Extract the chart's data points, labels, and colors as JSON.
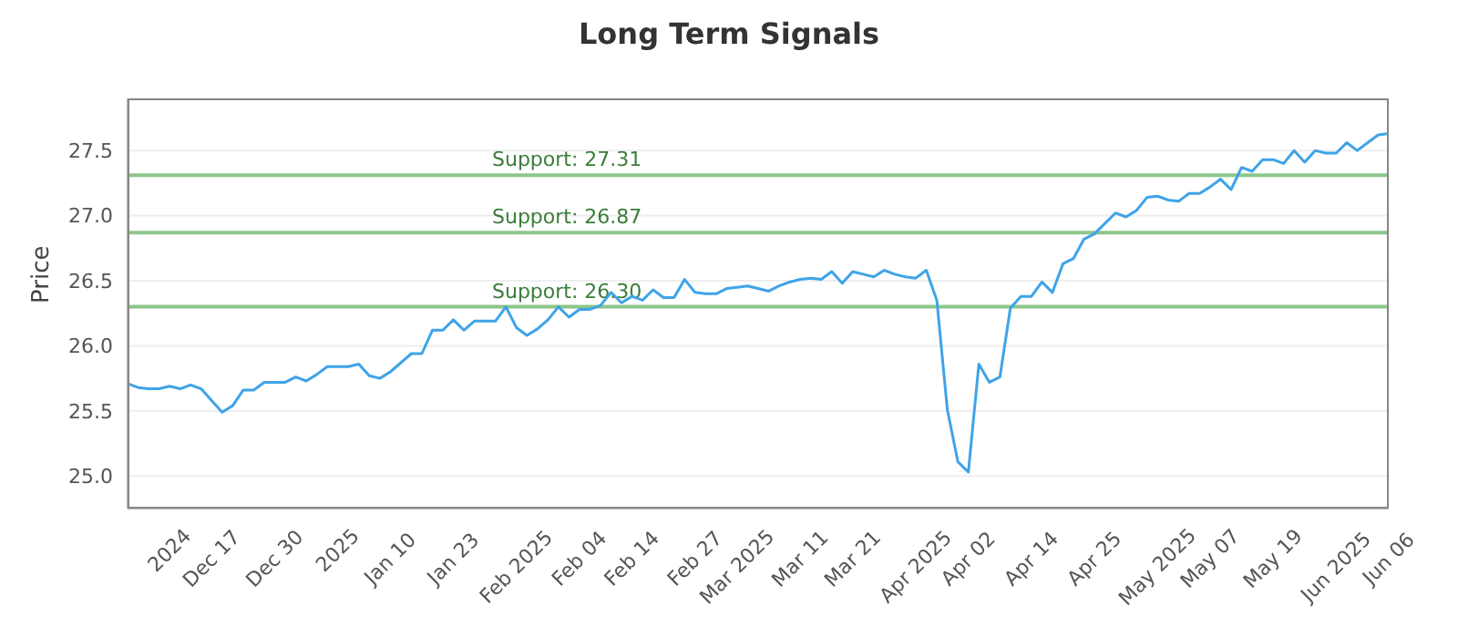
{
  "chart_data": {
    "type": "line",
    "title": "Long Term Signals",
    "ylabel": "Price",
    "categories": [
      null,
      null,
      null,
      null,
      "2024",
      null,
      null,
      null,
      "Dec 17",
      null,
      null,
      null,
      null,
      null,
      "Dec 30",
      null,
      null,
      null,
      null,
      null,
      "2025",
      null,
      null,
      null,
      null,
      "Jan 10",
      null,
      null,
      null,
      null,
      null,
      "Jan 23",
      null,
      null,
      null,
      null,
      null,
      "Feb 2025",
      null,
      null,
      null,
      null,
      null,
      "Feb 04",
      null,
      null,
      null,
      null,
      "Feb 14",
      null,
      null,
      null,
      null,
      null,
      "Feb 27",
      null,
      null,
      null,
      "Mar 2025",
      null,
      null,
      null,
      null,
      null,
      "Mar 11",
      null,
      null,
      null,
      null,
      "Mar 21",
      null,
      null,
      null,
      null,
      null,
      "Apr 2025",
      null,
      null,
      null,
      null,
      "Apr 02",
      null,
      null,
      null,
      null,
      null,
      "Apr 14",
      null,
      null,
      null,
      null,
      null,
      "Apr 25",
      null,
      null,
      null,
      null,
      null,
      "May 2025",
      null,
      null,
      null,
      null,
      "May 07",
      null,
      null,
      null,
      null,
      null,
      "May 19",
      null,
      null,
      null,
      null,
      null,
      "Jun 2025",
      null,
      null,
      null,
      null,
      "Jun 06"
    ],
    "series": [
      {
        "color": "#3fa3e8",
        "values": [
          25.71,
          25.68,
          25.67,
          25.67,
          25.69,
          25.67,
          25.7,
          25.67,
          25.58,
          25.49,
          25.54,
          25.66,
          25.66,
          25.72,
          25.72,
          25.72,
          25.76,
          25.73,
          25.78,
          25.84,
          25.84,
          25.84,
          25.86,
          25.77,
          25.75,
          25.8,
          25.87,
          25.94,
          25.94,
          26.12,
          26.12,
          26.2,
          26.12,
          26.19,
          26.19,
          26.19,
          26.3,
          26.14,
          26.08,
          26.13,
          26.2,
          26.3,
          26.22,
          26.28,
          26.28,
          26.31,
          26.41,
          26.33,
          26.38,
          26.35,
          26.43,
          26.37,
          26.37,
          26.51,
          26.41,
          26.4,
          26.4,
          26.44,
          26.45,
          26.46,
          26.44,
          26.42,
          26.46,
          26.49,
          26.51,
          26.52,
          26.51,
          26.57,
          26.48,
          26.57,
          26.55,
          26.53,
          26.58,
          26.55,
          26.53,
          26.52,
          26.58,
          26.35,
          25.51,
          25.11,
          25.03,
          25.86,
          25.72,
          25.76,
          26.29,
          26.38,
          26.38,
          26.49,
          26.41,
          26.63,
          26.67,
          26.82,
          26.86,
          26.94,
          27.02,
          26.99,
          27.04,
          27.14,
          27.15,
          27.12,
          27.11,
          27.17,
          27.17,
          27.22,
          27.28,
          27.2,
          27.37,
          27.34,
          27.43,
          27.43,
          27.4,
          27.5,
          27.41,
          27.5,
          27.48,
          27.48,
          27.56,
          27.5,
          27.56,
          27.62,
          27.63
        ]
      }
    ],
    "ylim": [
      24.75,
      27.9
    ],
    "yticks": [
      {
        "value": 25,
        "label": "25.0"
      },
      {
        "value": 25.5,
        "label": "25.5"
      },
      {
        "value": 26,
        "label": "26.0"
      },
      {
        "value": 26.5,
        "label": "26.5"
      },
      {
        "value": 27,
        "label": "27.0"
      },
      {
        "value": 27.5,
        "label": "27.5"
      }
    ],
    "ref_lines": [
      {
        "axis": "y",
        "value": 27.31,
        "label": "Support: 27.31",
        "color": "#8cc68a"
      },
      {
        "axis": "y",
        "value": 26.87,
        "label": "Support: 26.87",
        "color": "#8cc68a"
      },
      {
        "axis": "y",
        "value": 26.3,
        "label": "Support: 26.30",
        "color": "#8cc68a"
      }
    ],
    "grid": "y",
    "legend": false,
    "marker": "none",
    "line_style": "solid"
  }
}
